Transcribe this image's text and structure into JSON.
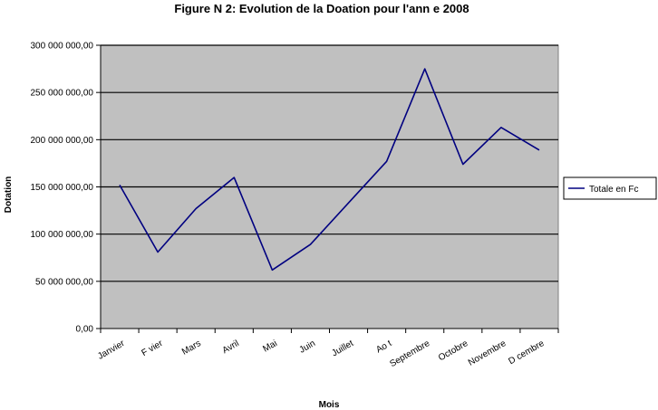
{
  "chart_data": {
    "type": "line",
    "title": "Figure N  2: Evolution de la Doation pour l'ann  e 2008",
    "xlabel": "Mois",
    "ylabel": "Dotation",
    "categories": [
      "Janvier",
      "F  vier",
      "Mars",
      "Avril",
      "Mai",
      "Juin",
      "Juillet",
      "Ao  t",
      "Septembre",
      "Octobre",
      "Novembre",
      "D  cembre"
    ],
    "series": [
      {
        "name": "Totale en Fc",
        "color": "#000080",
        "values": [
          152000000,
          81000000,
          127000000,
          160000000,
          62000000,
          89000000,
          133000000,
          177000000,
          275000000,
          174000000,
          213000000,
          189000000
        ]
      }
    ],
    "ylim": [
      0,
      300000000
    ],
    "yticks": [
      0,
      50000000,
      100000000,
      150000000,
      200000000,
      250000000,
      300000000
    ],
    "ytick_labels": [
      "0,00",
      "50 000 000,00",
      "100 000 000,00",
      "150 000 000,00",
      "200 000 000,00",
      "250 000 000,00",
      "300 000 000,00"
    ],
    "grid": true,
    "plot_background": "#c0c0c0",
    "legend_position": "right"
  }
}
